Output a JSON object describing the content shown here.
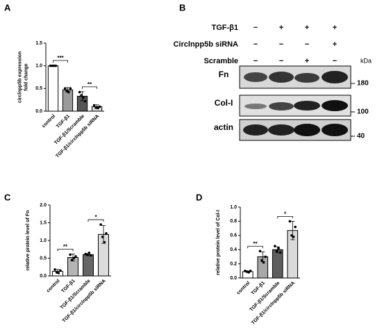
{
  "panel_labels": [
    "A",
    "B",
    "C",
    "D"
  ],
  "blot": {
    "treatments": [
      {
        "name": "TGF-β1",
        "signs": [
          "−",
          "+",
          "+",
          "+"
        ]
      },
      {
        "name": "Circlnpp5b siRNA",
        "signs": [
          "−",
          "−",
          "−",
          "+"
        ]
      },
      {
        "name": "Scramble",
        "signs": [
          "−",
          "−",
          "+",
          "−"
        ]
      }
    ],
    "unit": "kDa",
    "bands": [
      {
        "name": "Fn",
        "marker": "180"
      },
      {
        "name": "Col-I",
        "marker": "100"
      },
      {
        "name": "actin",
        "marker": "40"
      }
    ]
  },
  "chart_data": [
    {
      "type": "bar",
      "y_label": [
        "circlnpp5b expression",
        "fold change"
      ],
      "categories": [
        "control",
        "TGF-β1",
        "TGF-β1/Scramble",
        "TGF-β1/circlnpp5b siRNA"
      ],
      "values": [
        1.0,
        0.47,
        0.33,
        0.1
      ],
      "errors": [
        0.01,
        0.05,
        0.1,
        0.04
      ],
      "points": [
        [
          1,
          1,
          1,
          1
        ],
        [
          0.5,
          0.45,
          0.42,
          0.5
        ],
        [
          0.42,
          0.35,
          0.3,
          0.22
        ],
        [
          0.13,
          0.08,
          0.07,
          0.1
        ]
      ],
      "colors": [
        "#ffffff",
        "#9a9a9a",
        "#555555",
        "#d9d9d9"
      ],
      "ylim": [
        0,
        1.5
      ],
      "yticks": [
        {
          "value": 0,
          "label": "0.0"
        },
        0.5,
        {
          "value": 1,
          "label": "1.0"
        },
        1.5
      ],
      "significance": [
        {
          "from": 0,
          "to": 1,
          "label": "***"
        },
        {
          "from": 2,
          "to": 3,
          "label": "**"
        }
      ]
    },
    {
      "type": "bar",
      "y_label": [
        "relative protein level of Fn"
      ],
      "categories": [
        "control",
        "TGF-β1",
        "TGF-β1/Scramble",
        "TGF-β1/circlnpp5b siRNA"
      ],
      "values": [
        0.13,
        0.52,
        0.6,
        1.17
      ],
      "errors": [
        0.05,
        0.1,
        0.03,
        0.25
      ],
      "points": [
        [
          0.18,
          0.1,
          0.08,
          0.15
        ],
        [
          0.6,
          0.45,
          0.5,
          0.55
        ],
        [
          0.62,
          0.6,
          0.65,
          0.58
        ],
        [
          1.45,
          1.1,
          0.95,
          1.2
        ]
      ],
      "colors": [
        "#ffffff",
        "#b5b5b5",
        "#666666",
        "#dcdcdc"
      ],
      "ylim": [
        0,
        2
      ],
      "yticks": [
        {
          "value": 0,
          "label": "0.0"
        },
        0.5,
        {
          "value": 1,
          "label": "1.0"
        },
        1.5,
        {
          "value": 2,
          "label": "2.0"
        }
      ],
      "significance": [
        {
          "from": 0,
          "to": 1,
          "label": "**"
        },
        {
          "from": 2,
          "to": 3,
          "label": "*"
        }
      ]
    },
    {
      "type": "bar",
      "y_label": [
        "relative protein level of Col-I"
      ],
      "categories": [
        "control",
        "TGF-β1",
        "TGF-β1/Scramble",
        "TGF-β1/circlnpp5b siRNA"
      ],
      "values": [
        0.09,
        0.3,
        0.4,
        0.67
      ],
      "errors": [
        0.01,
        0.07,
        0.04,
        0.13
      ],
      "points": [
        [
          0.1,
          0.09,
          0.08,
          0.1
        ],
        [
          0.38,
          0.25,
          0.22,
          0.3
        ],
        [
          0.45,
          0.38,
          0.42,
          0.36
        ],
        [
          0.8,
          0.6,
          0.58,
          0.72
        ]
      ],
      "colors": [
        "#ffffff",
        "#a8a8a8",
        "#5e5e5e",
        "#dadada"
      ],
      "ylim": [
        0,
        1
      ],
      "yticks": [
        {
          "value": 0,
          "label": "0.0"
        },
        0.2,
        0.4,
        0.6,
        0.8,
        {
          "value": 1,
          "label": "1.0"
        }
      ],
      "significance": [
        {
          "from": 0,
          "to": 1,
          "label": "**"
        },
        {
          "from": 2,
          "to": 3,
          "label": "*"
        }
      ]
    }
  ]
}
